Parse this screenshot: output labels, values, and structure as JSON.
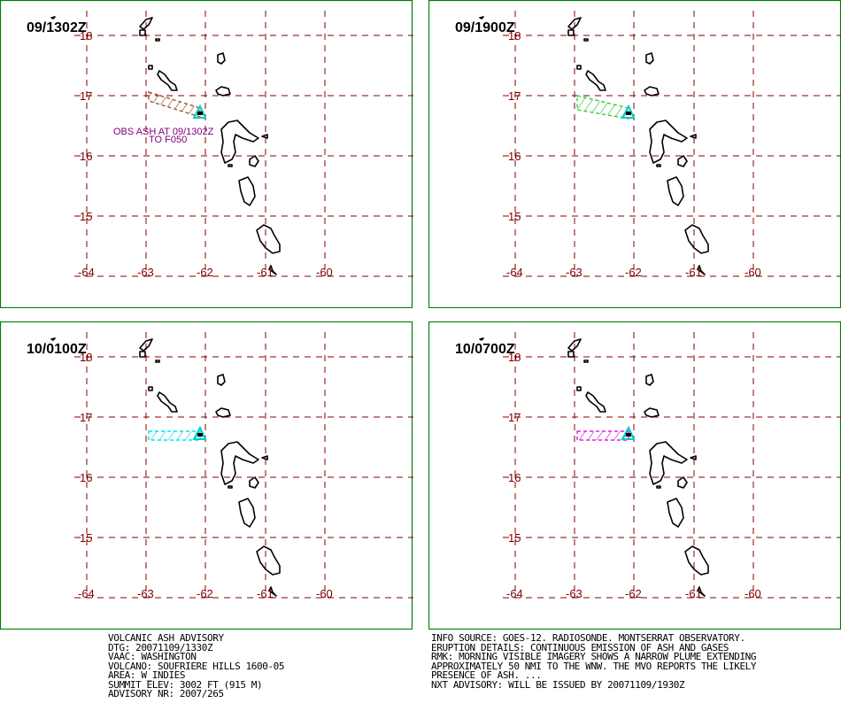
{
  "panels": [
    {
      "valid_time": "09/1302Z",
      "plume_color": "#a0522d",
      "plume": "obs",
      "annotation": [
        "OBS ASH AT 09/1302Z",
        "TO F050"
      ]
    },
    {
      "valid_time": "09/1900Z",
      "plume_color": "#33cc33",
      "plume": "f06"
    },
    {
      "valid_time": "10/0100Z",
      "plume_color": "#00e5e5",
      "plume": "f12"
    },
    {
      "valid_time": "10/0700Z",
      "plume_color": "#e020e0",
      "plume": "f18"
    }
  ],
  "map": {
    "lat_labels": [
      "18",
      "17",
      "16",
      "15"
    ],
    "lon_labels": [
      "-64",
      "-63",
      "-62",
      "-61",
      "-60"
    ],
    "grid_color": "#800000",
    "frame_color": "#008000",
    "volcano_marker_color": "#00cccc"
  },
  "advisory_left": [
    "VOLCANIC ASH ADVISORY",
    "DTG: 20071109/1330Z",
    "VAAC: WASHINGTON",
    "VOLCANO: SOUFRIERE HILLS 1600-05",
    "AREA: W_INDIES",
    "SUMMIT ELEV: 3002 FT (915 M)",
    "ADVISORY NR: 2007/265"
  ],
  "advisory_right": [
    "INFO SOURCE: GOES-12. RADIOSONDE. MONTSERRAT OBSERVATORY.",
    "ERUPTION DETAILS: CONTINUOUS EMISSION OF ASH AND GASES",
    "RMK: MORNING VISIBLE IMAGERY SHOWS A NARROW PLUME EXTENDING",
    "APPROXIMATELY 50 NMI TO THE WNW. THE MVO REPORTS THE LIKELY",
    "PRESENCE OF ASH. ...",
    "NXT ADVISORY: WILL BE ISSUED BY 20071109/1930Z"
  ]
}
